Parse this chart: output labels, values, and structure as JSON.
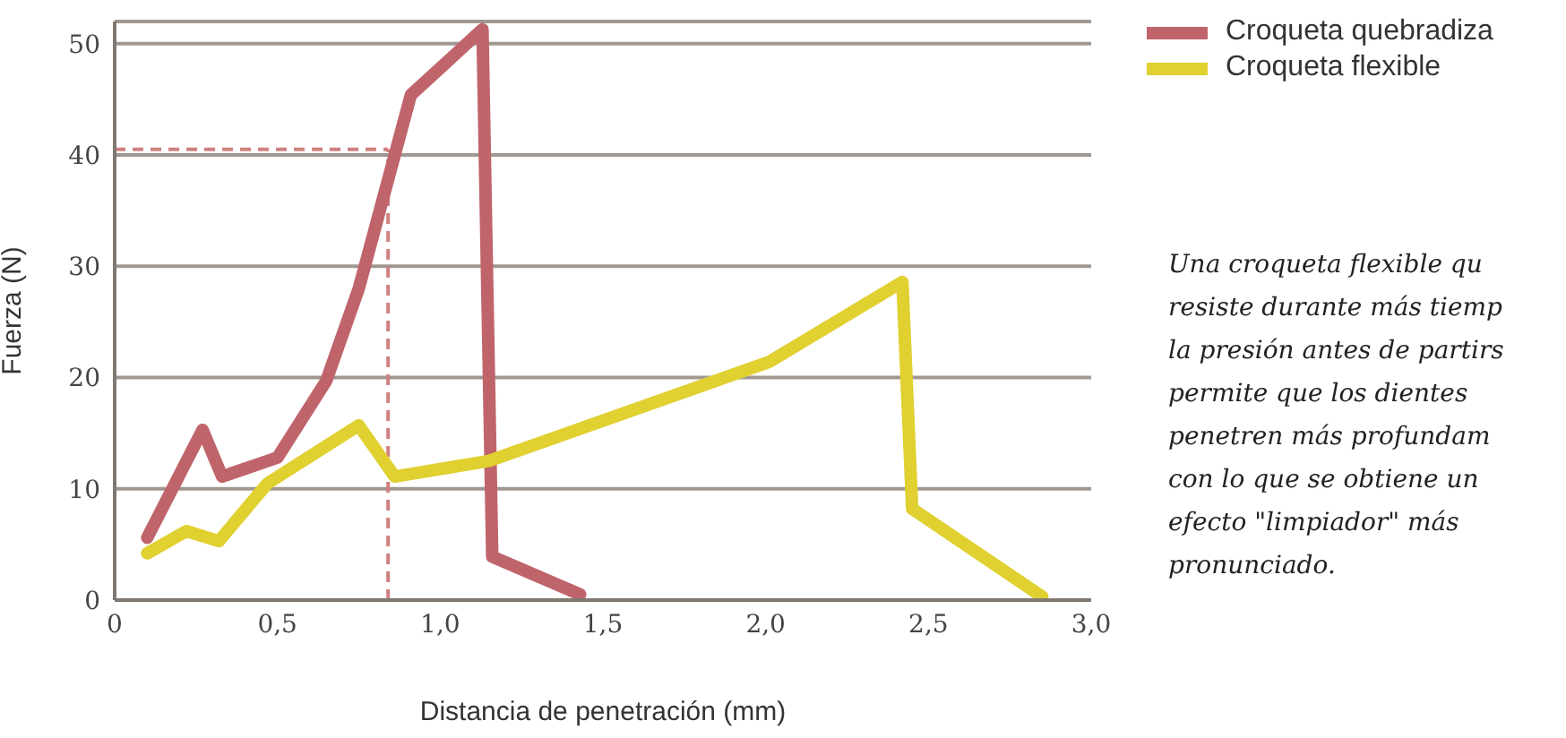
{
  "chart_data": {
    "type": "line",
    "xlabel": "Distancia de penetración  (mm)",
    "ylabel": "Fuerza (N)",
    "xlim": [
      0,
      3
    ],
    "xticks": [
      {
        "value": 0,
        "label": "0"
      },
      {
        "value": 0.5,
        "label": "0,5"
      },
      {
        "value": 1,
        "label": "1,0"
      },
      {
        "value": 1.5,
        "label": "1,5"
      },
      {
        "value": 2,
        "label": "2,0"
      },
      {
        "value": 2.5,
        "label": "2,5"
      },
      {
        "value": 3,
        "label": "3,0"
      }
    ],
    "ylim": [
      0,
      52
    ],
    "yticks": [
      0,
      10,
      20,
      30,
      40,
      50
    ],
    "grid": "y",
    "legend": "top right",
    "line_style": "solid",
    "marker": "none",
    "series": [
      {
        "name": "Croqueta quebradiza",
        "color": "#c0646c",
        "x": [
          0.1,
          0.27,
          0.33,
          0.5,
          0.65,
          0.75,
          0.91,
          1.13,
          1.16,
          1.43
        ],
        "values": [
          5.6,
          15.3,
          11.1,
          12.8,
          19.7,
          28,
          45.4,
          51.3,
          3.9,
          0.5
        ]
      },
      {
        "name": "Croqueta flexible",
        "color": "#e0d030",
        "x": [
          0.1,
          0.22,
          0.32,
          0.47,
          0.75,
          0.86,
          1.15,
          2.01,
          2.42,
          2.45,
          2.85
        ],
        "values": [
          4.2,
          6.2,
          5.3,
          10.5,
          15.7,
          11.1,
          12.5,
          21.4,
          28.6,
          8.2,
          0.3
        ]
      }
    ],
    "ref_lines": [
      {
        "axis": "x",
        "value": 0.84,
        "color": "#d08080",
        "line_style": "dashed"
      },
      {
        "axis": "y",
        "value": 40.5,
        "color": "#d08080",
        "line_style": "dashed"
      }
    ],
    "annotations": [
      "Una croqueta flexible qu\nresiste durante más tiemp\nla presión antes de partirs\npermite que los dientes\npenetren más profundam\ncon lo que se obtiene un\nefecto \"limpiador\" más\npronunciado."
    ]
  }
}
